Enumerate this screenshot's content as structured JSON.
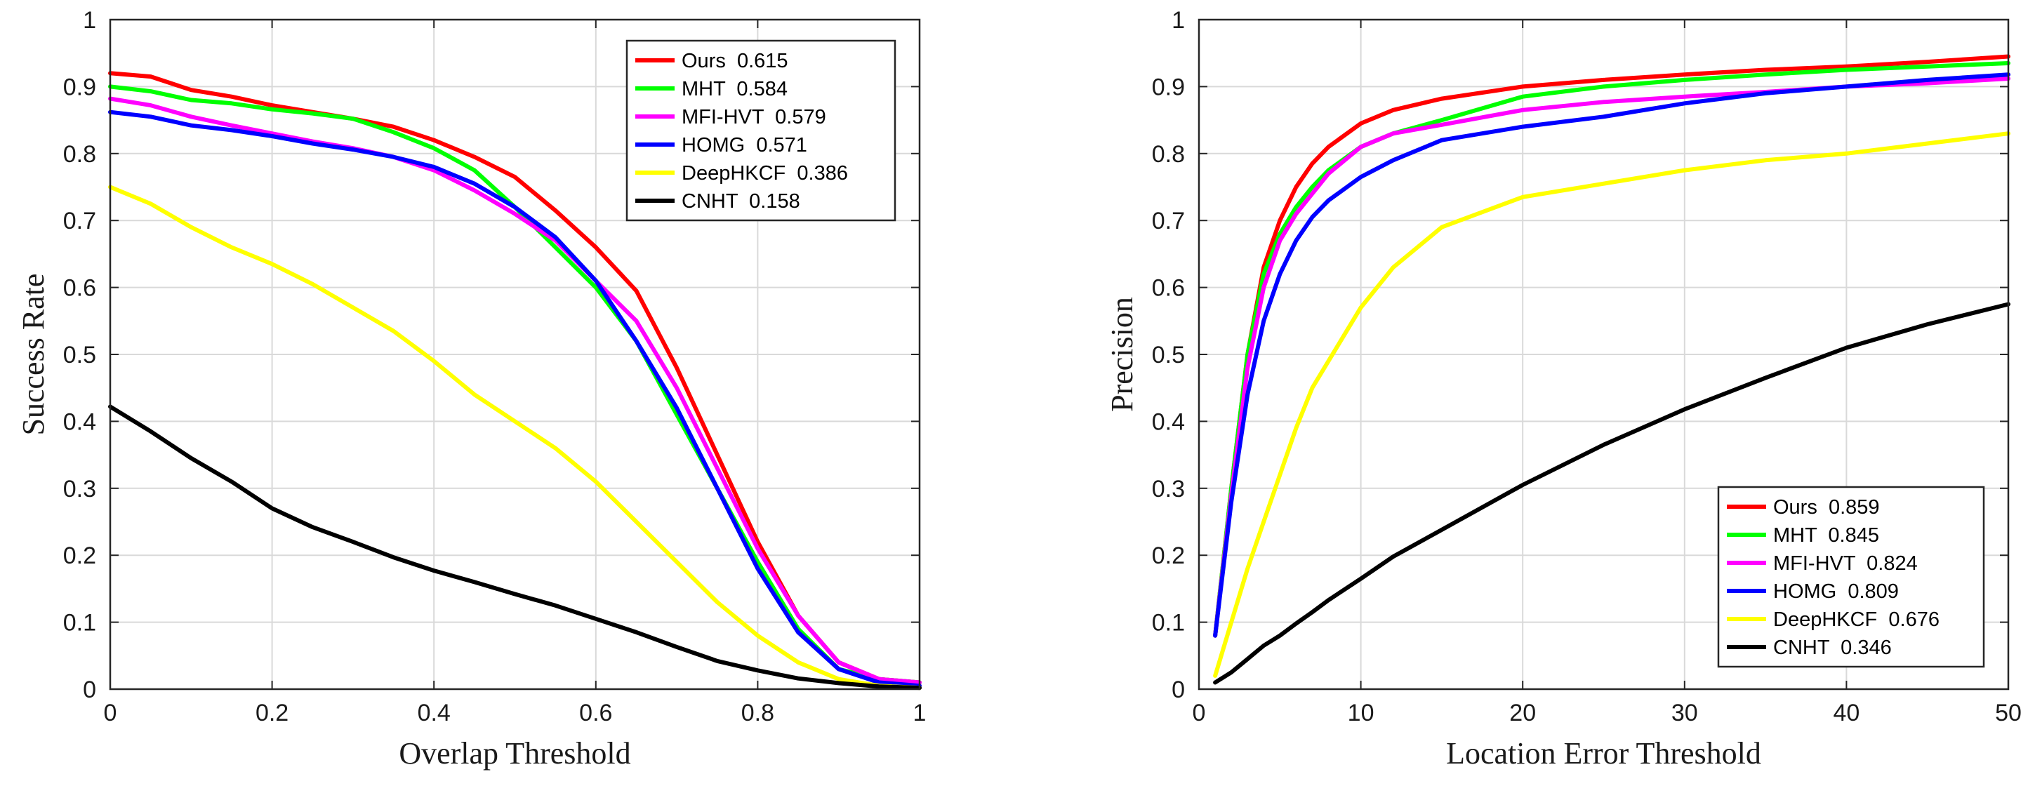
{
  "chart_data": [
    {
      "type": "line",
      "title": "",
      "xlabel": "Overlap Threshold",
      "ylabel": "Success Rate",
      "xlim": [
        0,
        1
      ],
      "ylim": [
        0,
        1
      ],
      "xticks": [
        0,
        0.2,
        0.4,
        0.6,
        0.8,
        1
      ],
      "xtick_labels": [
        "0",
        "0.2",
        "0.4",
        "0.6",
        "0.8",
        "1"
      ],
      "yticks": [
        0,
        0.1,
        0.2,
        0.3,
        0.4,
        0.5,
        0.6,
        0.7,
        0.8,
        0.9,
        1
      ],
      "ytick_labels": [
        "0",
        "0.1",
        "0.2",
        "0.3",
        "0.4",
        "0.5",
        "0.6",
        "0.7",
        "0.8",
        "0.9",
        "1"
      ],
      "grid": true,
      "legend_position": "top-right",
      "x": [
        0,
        0.05,
        0.1,
        0.15,
        0.2,
        0.25,
        0.3,
        0.35,
        0.4,
        0.45,
        0.5,
        0.55,
        0.6,
        0.65,
        0.7,
        0.75,
        0.8,
        0.85,
        0.9,
        0.95,
        1
      ],
      "series": [
        {
          "name": "Ours",
          "score": "0.615",
          "color": "#ff0000",
          "values": [
            0.92,
            0.915,
            0.895,
            0.885,
            0.872,
            0.862,
            0.852,
            0.84,
            0.82,
            0.795,
            0.765,
            0.715,
            0.66,
            0.595,
            0.48,
            0.35,
            0.22,
            0.11,
            0.04,
            0.015,
            0.01
          ]
        },
        {
          "name": "MHT",
          "score": "0.584",
          "color": "#00ff00",
          "values": [
            0.9,
            0.893,
            0.88,
            0.875,
            0.866,
            0.86,
            0.852,
            0.832,
            0.808,
            0.775,
            0.72,
            0.66,
            0.6,
            0.52,
            0.41,
            0.3,
            0.19,
            0.09,
            0.03,
            0.015,
            0.01
          ]
        },
        {
          "name": "MFI-HVT",
          "score": "0.579",
          "color": "#ff00ff",
          "values": [
            0.882,
            0.872,
            0.855,
            0.842,
            0.83,
            0.818,
            0.808,
            0.795,
            0.775,
            0.745,
            0.71,
            0.67,
            0.61,
            0.55,
            0.45,
            0.33,
            0.21,
            0.11,
            0.04,
            0.015,
            0.01
          ]
        },
        {
          "name": "HOMG",
          "score": "0.571",
          "color": "#0000ff",
          "values": [
            0.862,
            0.855,
            0.842,
            0.835,
            0.826,
            0.815,
            0.806,
            0.795,
            0.78,
            0.755,
            0.72,
            0.675,
            0.61,
            0.52,
            0.42,
            0.3,
            0.18,
            0.085,
            0.03,
            0.01,
            0.005
          ]
        },
        {
          "name": "DeepHKCF",
          "score": "0.386",
          "color": "#ffff00",
          "values": [
            0.75,
            0.725,
            0.69,
            0.66,
            0.635,
            0.605,
            0.57,
            0.535,
            0.49,
            0.44,
            0.4,
            0.36,
            0.31,
            0.25,
            0.19,
            0.13,
            0.08,
            0.04,
            0.015,
            0.005,
            0.002
          ]
        },
        {
          "name": "CNHT",
          "score": "0.158",
          "color": "#000000",
          "values": [
            0.422,
            0.385,
            0.345,
            0.31,
            0.27,
            0.242,
            0.22,
            0.197,
            0.177,
            0.16,
            0.142,
            0.125,
            0.105,
            0.085,
            0.063,
            0.042,
            0.028,
            0.016,
            0.009,
            0.004,
            0.002
          ]
        }
      ]
    },
    {
      "type": "line",
      "title": "",
      "xlabel": "Location Error Threshold",
      "ylabel": "Precision",
      "xlim": [
        0,
        50
      ],
      "ylim": [
        0,
        1
      ],
      "xticks": [
        0,
        10,
        20,
        30,
        40,
        50
      ],
      "xtick_labels": [
        "0",
        "10",
        "20",
        "30",
        "40",
        "50"
      ],
      "yticks": [
        0,
        0.1,
        0.2,
        0.3,
        0.4,
        0.5,
        0.6,
        0.7,
        0.8,
        0.9,
        1
      ],
      "ytick_labels": [
        "0",
        "0.1",
        "0.2",
        "0.3",
        "0.4",
        "0.5",
        "0.6",
        "0.7",
        "0.8",
        "0.9",
        "1"
      ],
      "grid": true,
      "legend_position": "bottom-right",
      "x": [
        1,
        2,
        3,
        4,
        5,
        6,
        7,
        8,
        10,
        12,
        15,
        20,
        25,
        30,
        35,
        40,
        45,
        50
      ],
      "series": [
        {
          "name": "Ours",
          "score": "0.859",
          "color": "#ff0000",
          "values": [
            0.08,
            0.3,
            0.5,
            0.63,
            0.7,
            0.75,
            0.785,
            0.81,
            0.845,
            0.865,
            0.882,
            0.9,
            0.91,
            0.918,
            0.925,
            0.93,
            0.937,
            0.945
          ]
        },
        {
          "name": "MHT",
          "score": "0.845",
          "color": "#00ff00",
          "values": [
            0.08,
            0.3,
            0.5,
            0.62,
            0.68,
            0.72,
            0.75,
            0.775,
            0.81,
            0.83,
            0.85,
            0.885,
            0.9,
            0.91,
            0.918,
            0.925,
            0.93,
            0.935
          ]
        },
        {
          "name": "MFI-HVT",
          "score": "0.824",
          "color": "#ff00ff",
          "values": [
            0.08,
            0.29,
            0.48,
            0.6,
            0.67,
            0.71,
            0.74,
            0.77,
            0.81,
            0.83,
            0.843,
            0.865,
            0.877,
            0.885,
            0.892,
            0.9,
            0.905,
            0.912
          ]
        },
        {
          "name": "HOMG",
          "score": "0.809",
          "color": "#0000ff",
          "values": [
            0.08,
            0.28,
            0.44,
            0.55,
            0.62,
            0.67,
            0.705,
            0.73,
            0.765,
            0.79,
            0.82,
            0.84,
            0.855,
            0.875,
            0.89,
            0.9,
            0.91,
            0.918
          ]
        },
        {
          "name": "DeepHKCF",
          "score": "0.676",
          "color": "#ffff00",
          "values": [
            0.02,
            0.1,
            0.18,
            0.25,
            0.32,
            0.39,
            0.45,
            0.49,
            0.57,
            0.63,
            0.69,
            0.735,
            0.755,
            0.775,
            0.79,
            0.8,
            0.815,
            0.83
          ]
        },
        {
          "name": "CNHT",
          "score": "0.346",
          "color": "#000000",
          "values": [
            0.01,
            0.025,
            0.045,
            0.065,
            0.08,
            0.098,
            0.115,
            0.133,
            0.165,
            0.198,
            0.238,
            0.305,
            0.365,
            0.418,
            0.465,
            0.51,
            0.545,
            0.575
          ]
        }
      ]
    }
  ]
}
